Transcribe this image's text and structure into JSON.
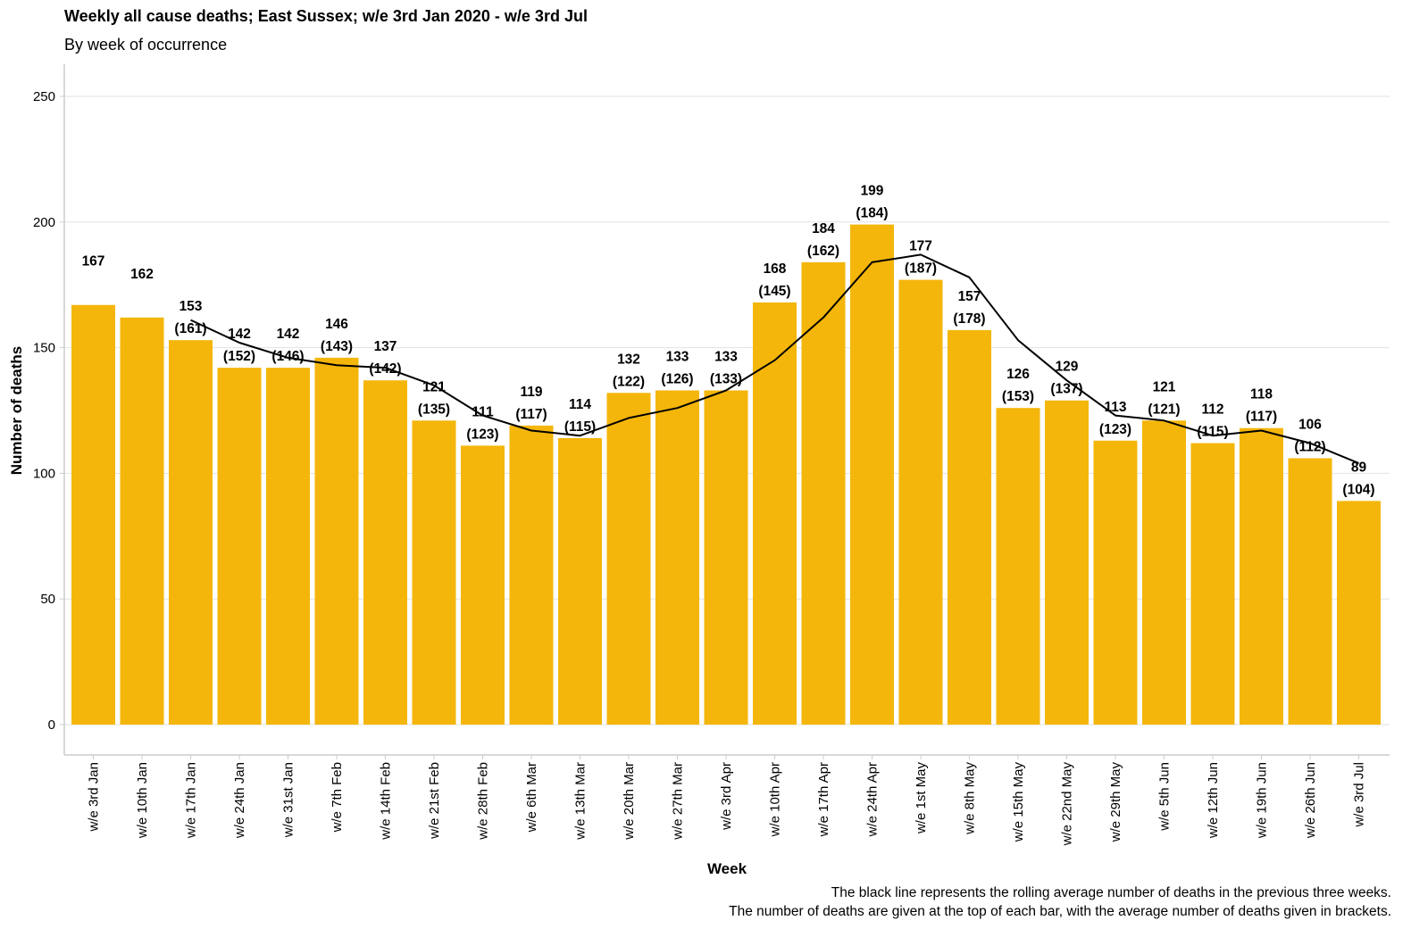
{
  "chart_data": {
    "type": "bar",
    "title": "Weekly all cause deaths; East Sussex; w/e 3rd Jan 2020 - w/e 3rd Jul",
    "subtitle": "By week of occurrence",
    "xlabel": "Week",
    "ylabel": "Number of deaths",
    "ylim": [
      0,
      250
    ],
    "yticks": [
      0,
      50,
      100,
      150,
      200,
      250
    ],
    "grid": "horizontal",
    "categories": [
      "w/e 3rd Jan",
      "w/e 10th Jan",
      "w/e 17th Jan",
      "w/e 24th Jan",
      "w/e 31st Jan",
      "w/e 7th Feb",
      "w/e 14th Feb",
      "w/e 21st Feb",
      "w/e 28th Feb",
      "w/e 6th Mar",
      "w/e 13th Mar",
      "w/e 20th Mar",
      "w/e 27th Mar",
      "w/e 3rd Apr",
      "w/e 10th Apr",
      "w/e 17th Apr",
      "w/e 24th Apr",
      "w/e 1st May",
      "w/e 8th May",
      "w/e 15th May",
      "w/e 22nd May",
      "w/e 29th May",
      "w/e 5th Jun",
      "w/e 12th Jun",
      "w/e 19th Jun",
      "w/e 26th Jun",
      "w/e 3rd Jul"
    ],
    "series": [
      {
        "type": "bar",
        "color": "#F4B60B",
        "values": [
          167,
          162,
          153,
          142,
          142,
          146,
          137,
          121,
          111,
          119,
          114,
          132,
          133,
          133,
          168,
          184,
          199,
          177,
          157,
          126,
          129,
          113,
          121,
          112,
          118,
          106,
          89
        ]
      },
      {
        "type": "line",
        "color": "#000000",
        "values": [
          null,
          null,
          161,
          152,
          146,
          143,
          142,
          135,
          123,
          117,
          115,
          122,
          126,
          133,
          145,
          162,
          184,
          187,
          178,
          153,
          137,
          123,
          121,
          115,
          117,
          112,
          104
        ]
      }
    ],
    "footnotes": [
      "The black line represents the rolling average number of deaths in the previous three weeks.",
      "The number of deaths are given at the top of each bar, with the average number of deaths given in brackets."
    ]
  }
}
